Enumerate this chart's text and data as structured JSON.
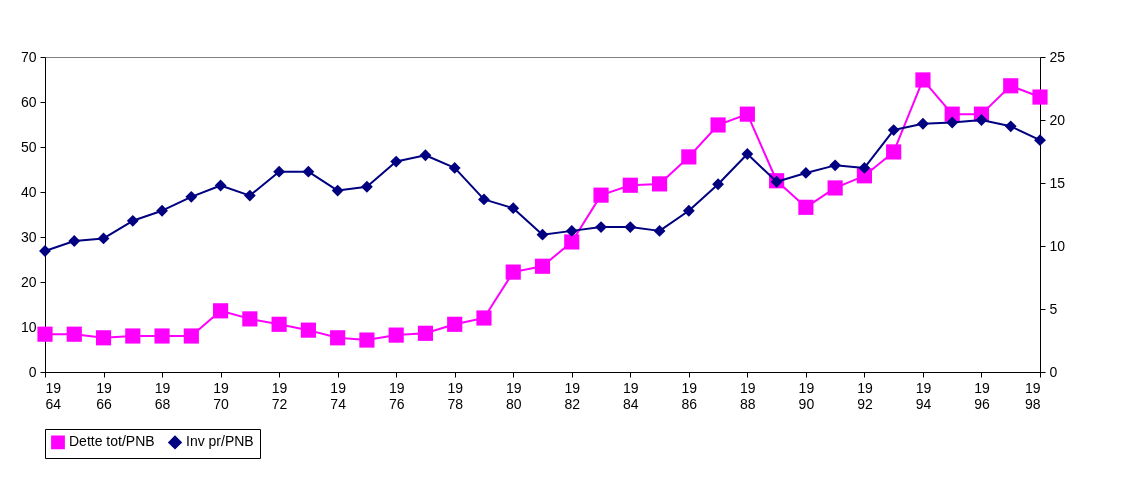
{
  "chart_data": {
    "type": "line",
    "categories": [
      "1964",
      null,
      "1966",
      null,
      "1968",
      null,
      "1970",
      null,
      "1972",
      null,
      "1974",
      null,
      "1976",
      null,
      "1978",
      null,
      "1980",
      null,
      "1982",
      null,
      "1984",
      null,
      "1986",
      null,
      "1988",
      null,
      "1990",
      null,
      "1992",
      null,
      "1994",
      null,
      "1996",
      null,
      "1998"
    ],
    "series": [
      {
        "name": "Dette tot/PNB",
        "color": "#ff00ff",
        "marker": "square",
        "values": [
          8.4,
          8.4,
          7.6,
          8,
          8,
          8,
          13.6,
          11.8,
          10.6,
          9.3,
          7.6,
          7.1,
          8.2,
          8.6,
          10.6,
          12,
          22.2,
          23.5,
          28.9,
          39.3,
          41.5,
          41.8,
          47.8,
          54.9,
          57.3,
          42.5,
          36.6,
          40.9,
          43.6,
          48.9,
          64.9,
          57.3,
          57.3,
          63.6,
          61.1
        ]
      },
      {
        "name": "Inv pr/PNB",
        "color": "#000080",
        "marker": "diamond",
        "axis": "y2",
        "values": [
          9.6,
          10.4,
          10.6,
          12,
          12.8,
          13.9,
          14.8,
          14,
          15.9,
          15.9,
          14.4,
          14.7,
          16.7,
          17.2,
          16.2,
          13.7,
          13,
          10.9,
          11.2,
          11.5,
          11.5,
          11.2,
          12.8,
          14.9,
          17.3,
          15.1,
          15.8,
          16.4,
          16.2,
          19.2,
          19.7,
          19.8,
          20,
          19.5,
          18.4
        ]
      }
    ],
    "ylim": [
      0,
      70
    ],
    "yticks": [
      0,
      10,
      20,
      30,
      40,
      50,
      60,
      70
    ],
    "y2lim": [
      0,
      25
    ],
    "y2ticks": [
      0,
      5,
      10,
      15,
      20,
      25
    ],
    "grid": false,
    "legend": "bottom"
  }
}
